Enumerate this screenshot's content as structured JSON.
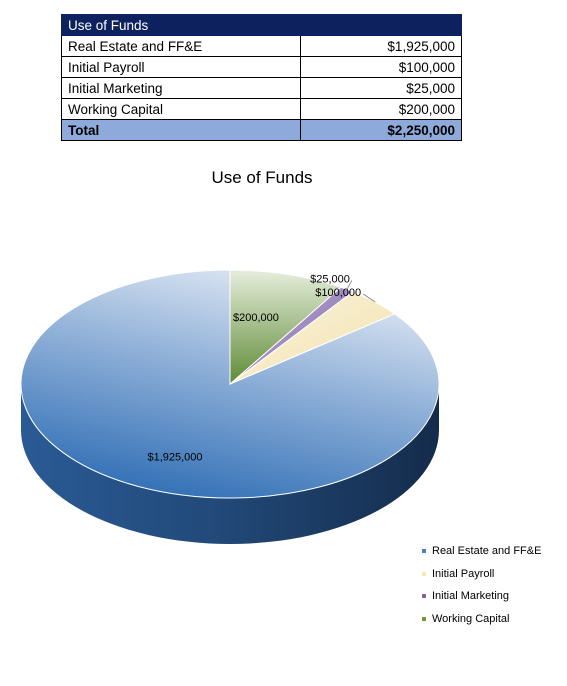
{
  "table": {
    "header": "Use of Funds",
    "rows": [
      {
        "label": "Real Estate and FF&E",
        "amount": "$1,925,000"
      },
      {
        "label": "Initial Payroll",
        "amount": "$100,000"
      },
      {
        "label": "Initial Marketing",
        "amount": "$25,000"
      },
      {
        "label": "Working Capital",
        "amount": "$200,000"
      }
    ],
    "total": {
      "label": "Total",
      "amount": "$2,250,000"
    }
  },
  "chart_data": {
    "type": "pie",
    "title": "Use of Funds",
    "style": "3d",
    "legend_position": "right-bottom",
    "slices": [
      {
        "label": "Real Estate and FF&E",
        "value": 1925000,
        "data_label": "$1,925,000",
        "color": "#4f81bd"
      },
      {
        "label": "Initial Payroll",
        "value": 100000,
        "data_label": "$100,000",
        "color": "#f5e6b8"
      },
      {
        "label": "Initial Marketing",
        "value": 25000,
        "data_label": "$25,000",
        "color": "#8064a2"
      },
      {
        "label": "Working Capital",
        "value": 200000,
        "data_label": "$200,000",
        "color": "#77933c"
      }
    ]
  }
}
